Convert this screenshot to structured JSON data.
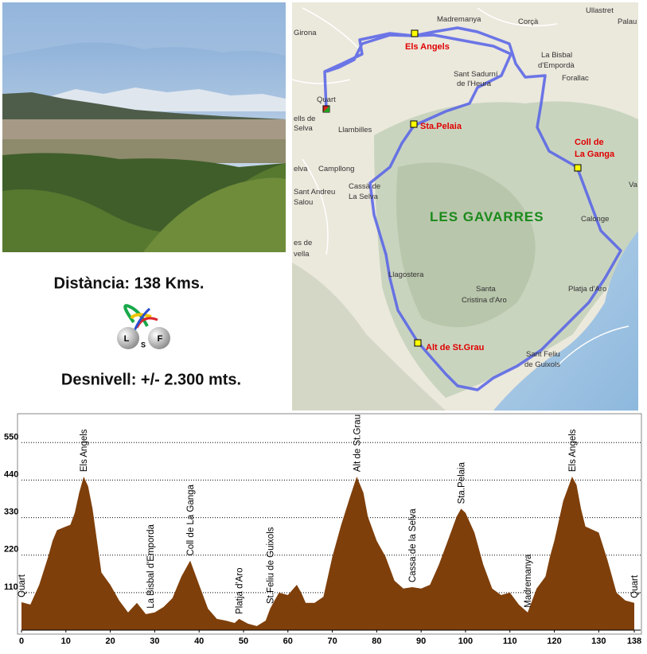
{
  "info": {
    "distance": "Distància: 138 Kms.",
    "elevation": "Desnivell: +/- 2.300 mts.",
    "logo": [
      "L",
      "S",
      "F"
    ]
  },
  "map": {
    "labels": [
      {
        "text": "Girona",
        "kind": "town"
      },
      {
        "text": "Madremanya",
        "kind": "town"
      },
      {
        "text": "Corçà",
        "kind": "town"
      },
      {
        "text": "Ullastret",
        "kind": "town"
      },
      {
        "text": "Palau",
        "kind": "town"
      },
      {
        "text": "Els Angels",
        "kind": "checkpoint"
      },
      {
        "text": "La Bisbal",
        "kind": "town"
      },
      {
        "text": "d'Empordà",
        "kind": "town"
      },
      {
        "text": "Forallac",
        "kind": "town"
      },
      {
        "text": "Sant Sadurní",
        "kind": "town"
      },
      {
        "text": "de l'Heura",
        "kind": "town"
      },
      {
        "text": "Quart",
        "kind": "town"
      },
      {
        "text": "ells de",
        "kind": "town"
      },
      {
        "text": "Selva",
        "kind": "town"
      },
      {
        "text": "Llambilles",
        "kind": "town"
      },
      {
        "text": "Sta.Pelaia",
        "kind": "checkpoint"
      },
      {
        "text": "Coll de",
        "kind": "checkpoint"
      },
      {
        "text": "La Ganga",
        "kind": "checkpoint"
      },
      {
        "text": "elva",
        "kind": "town"
      },
      {
        "text": "Campllong",
        "kind": "town"
      },
      {
        "text": "Cassà de",
        "kind": "town"
      },
      {
        "text": "La Selva",
        "kind": "town"
      },
      {
        "text": "Sant Andreu",
        "kind": "town"
      },
      {
        "text": "Salou",
        "kind": "town"
      },
      {
        "text": "LES  GAVARRES",
        "kind": "region"
      },
      {
        "text": "Va",
        "kind": "town"
      },
      {
        "text": "Calonge",
        "kind": "town"
      },
      {
        "text": "es de",
        "kind": "town"
      },
      {
        "text": "vella",
        "kind": "town"
      },
      {
        "text": "Llagostera",
        "kind": "town"
      },
      {
        "text": "Platja d'Aro",
        "kind": "town"
      },
      {
        "text": "Santa",
        "kind": "town"
      },
      {
        "text": "Cristina d'Aro",
        "kind": "town"
      },
      {
        "text": "Alt de St.Grau",
        "kind": "checkpoint"
      },
      {
        "text": "Sant Feliu",
        "kind": "town"
      },
      {
        "text": "de Guixols",
        "kind": "town"
      }
    ]
  },
  "chart_data": {
    "type": "area",
    "color": "#7f3f0a",
    "x": [
      0,
      2,
      4,
      6,
      7,
      8,
      10,
      11,
      12,
      13,
      14,
      15,
      16,
      17,
      18,
      20,
      22,
      24,
      26,
      28,
      30,
      32,
      34,
      36,
      38,
      40,
      42,
      44,
      46,
      48,
      49,
      51,
      53,
      55,
      56,
      57,
      58,
      60,
      62,
      63,
      64,
      66,
      68,
      70,
      72,
      74,
      75.5,
      77,
      78,
      80,
      82,
      84,
      86,
      88,
      90,
      92,
      94,
      96,
      98,
      99,
      100,
      102,
      104,
      106,
      108,
      110,
      112,
      114,
      116,
      118,
      119,
      120,
      122,
      124,
      125,
      126,
      127,
      128,
      130,
      132,
      134,
      136,
      138
    ],
    "values": [
      82,
      75,
      133,
      215,
      262,
      293,
      304,
      309,
      344,
      403,
      450,
      422,
      356,
      262,
      169,
      133,
      87,
      52,
      80,
      47,
      52,
      68,
      94,
      157,
      204,
      133,
      63,
      33,
      28,
      21,
      33,
      19,
      12,
      28,
      63,
      87,
      110,
      103,
      133,
      110,
      80,
      80,
      98,
      215,
      309,
      391,
      450,
      403,
      333,
      262,
      215,
      145,
      122,
      126,
      122,
      133,
      192,
      262,
      333,
      356,
      344,
      286,
      192,
      122,
      103,
      110,
      75,
      52,
      122,
      157,
      215,
      262,
      379,
      450,
      426,
      356,
      304,
      298,
      286,
      204,
      110,
      87,
      80
    ],
    "xlim": [
      0,
      138
    ],
    "ylim": [
      0,
      630
    ],
    "xticks": [
      0,
      10,
      20,
      30,
      40,
      50,
      60,
      70,
      80,
      90,
      100,
      110,
      120,
      130,
      138
    ],
    "yticks": [
      110,
      220,
      330,
      440,
      550
    ],
    "grid": true,
    "annotations": [
      {
        "text": "Quart",
        "x": 0
      },
      {
        "text": "Els Angels",
        "x": 14
      },
      {
        "text": "La Bisbal d'Emporda",
        "x": 29
      },
      {
        "text": "Coll de La Ganga",
        "x": 38
      },
      {
        "text": "Platja d'Aro",
        "x": 49
      },
      {
        "text": "St.Feliu de Guixols",
        "x": 56
      },
      {
        "text": "Alt de St.Grau",
        "x": 75.5
      },
      {
        "text": "Cassa de la Selva",
        "x": 88
      },
      {
        "text": "Sta.Pelaia",
        "x": 99
      },
      {
        "text": "Madremanya",
        "x": 114
      },
      {
        "text": "Els Angels",
        "x": 124
      },
      {
        "text": "Quart",
        "x": 138
      }
    ]
  }
}
